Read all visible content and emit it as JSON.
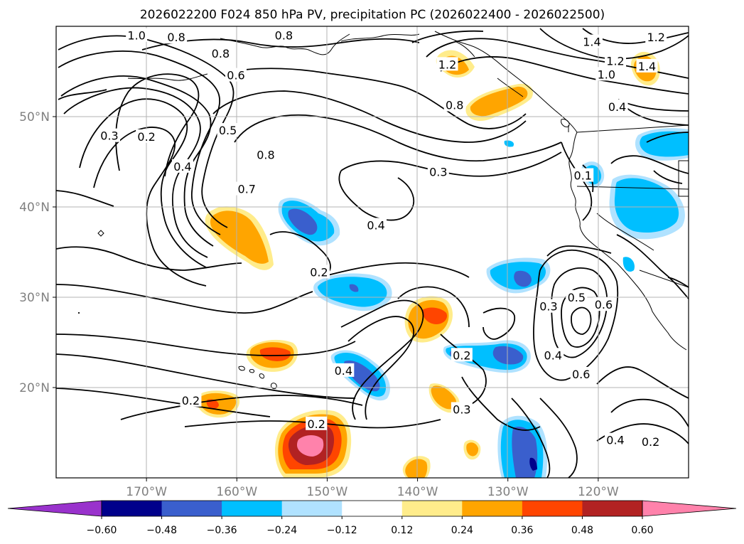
{
  "chart_data": {
    "type": "map-contour",
    "title": "2026022200 F024 850 hPa PV, precipitation PC (2026022400 - 2026022500)",
    "lon_range": [
      -180,
      -110
    ],
    "lat_range": [
      10,
      60
    ],
    "grid": true,
    "x_ticks": [
      {
        "value": -170,
        "label": "170°W"
      },
      {
        "value": -160,
        "label": "160°W"
      },
      {
        "value": -150,
        "label": "150°W"
      },
      {
        "value": -140,
        "label": "140°W"
      },
      {
        "value": -130,
        "label": "130°W"
      },
      {
        "value": -120,
        "label": "120°W"
      }
    ],
    "y_ticks": [
      {
        "value": 50,
        "label": "50°N"
      },
      {
        "value": 40,
        "label": "40°N"
      },
      {
        "value": 30,
        "label": "30°N"
      },
      {
        "value": 20,
        "label": "20°N"
      }
    ],
    "colorbar": {
      "extend": "both",
      "colors": [
        "#9932cc",
        "#00008b",
        "#3a5fcd",
        "#00bfff",
        "#b0e2ff",
        "#ffffff",
        "#ffec8b",
        "#ffa500",
        "#ff4500",
        "#b22222",
        "#ff82ab"
      ],
      "boundaries": [
        -0.6,
        -0.48,
        -0.36,
        -0.24,
        -0.12,
        0.12,
        0.24,
        0.36,
        0.48,
        0.6
      ],
      "labels": [
        "−0.60",
        "−0.48",
        "−0.36",
        "−0.24",
        "−0.12",
        "0.12",
        "0.24",
        "0.36",
        "0.48",
        "0.60"
      ]
    },
    "contour_labels": [
      {
        "text": "1.0",
        "lon": -171.1,
        "lat": 59.0
      },
      {
        "text": "0.8",
        "lon": -166.7,
        "lat": 58.8
      },
      {
        "text": "0.8",
        "lon": -154.8,
        "lat": 59.0
      },
      {
        "text": "0.8",
        "lon": -161.8,
        "lat": 57.0
      },
      {
        "text": "0.6",
        "lon": -160.1,
        "lat": 54.6
      },
      {
        "text": "0.3",
        "lon": -174.1,
        "lat": 47.9
      },
      {
        "text": "0.2",
        "lon": -170.0,
        "lat": 47.8
      },
      {
        "text": "0.5",
        "lon": -161.0,
        "lat": 48.5
      },
      {
        "text": "0.4",
        "lon": -166.0,
        "lat": 44.5
      },
      {
        "text": "0.8",
        "lon": -156.8,
        "lat": 45.8
      },
      {
        "text": "0.7",
        "lon": -158.9,
        "lat": 42.0
      },
      {
        "text": "1.2",
        "lon": -136.7,
        "lat": 55.8
      },
      {
        "text": "0.8",
        "lon": -135.9,
        "lat": 51.3
      },
      {
        "text": "1.4",
        "lon": -120.7,
        "lat": 58.3
      },
      {
        "text": "1.2",
        "lon": -113.6,
        "lat": 58.8
      },
      {
        "text": "1.2",
        "lon": -118.1,
        "lat": 56.2
      },
      {
        "text": "1.0",
        "lon": -119.1,
        "lat": 54.7
      },
      {
        "text": "1.4",
        "lon": -114.6,
        "lat": 55.6
      },
      {
        "text": "0.4",
        "lon": -117.9,
        "lat": 51.1
      },
      {
        "text": "0.3",
        "lon": -137.7,
        "lat": 43.9
      },
      {
        "text": "0.4",
        "lon": -144.6,
        "lat": 38.0
      },
      {
        "text": "0.1",
        "lon": -121.7,
        "lat": 43.5
      },
      {
        "text": "0.2",
        "lon": -150.9,
        "lat": 32.8
      },
      {
        "text": "0.3",
        "lon": -125.5,
        "lat": 29.0
      },
      {
        "text": "0.5",
        "lon": -122.4,
        "lat": 30.0
      },
      {
        "text": "0.6",
        "lon": -119.4,
        "lat": 29.2
      },
      {
        "text": "0.4",
        "lon": -125.0,
        "lat": 23.6
      },
      {
        "text": "0.6",
        "lon": -121.9,
        "lat": 21.5
      },
      {
        "text": "0.2",
        "lon": -135.1,
        "lat": 23.6
      },
      {
        "text": "0.4",
        "lon": -148.2,
        "lat": 21.9
      },
      {
        "text": "0.2",
        "lon": -165.1,
        "lat": 18.6
      },
      {
        "text": "0.2",
        "lon": -151.2,
        "lat": 16.0
      },
      {
        "text": "0.3",
        "lon": -135.1,
        "lat": 17.6
      },
      {
        "text": "0.4",
        "lon": -118.1,
        "lat": 14.2
      },
      {
        "text": "0.2",
        "lon": -114.2,
        "lat": 14.0
      }
    ]
  }
}
